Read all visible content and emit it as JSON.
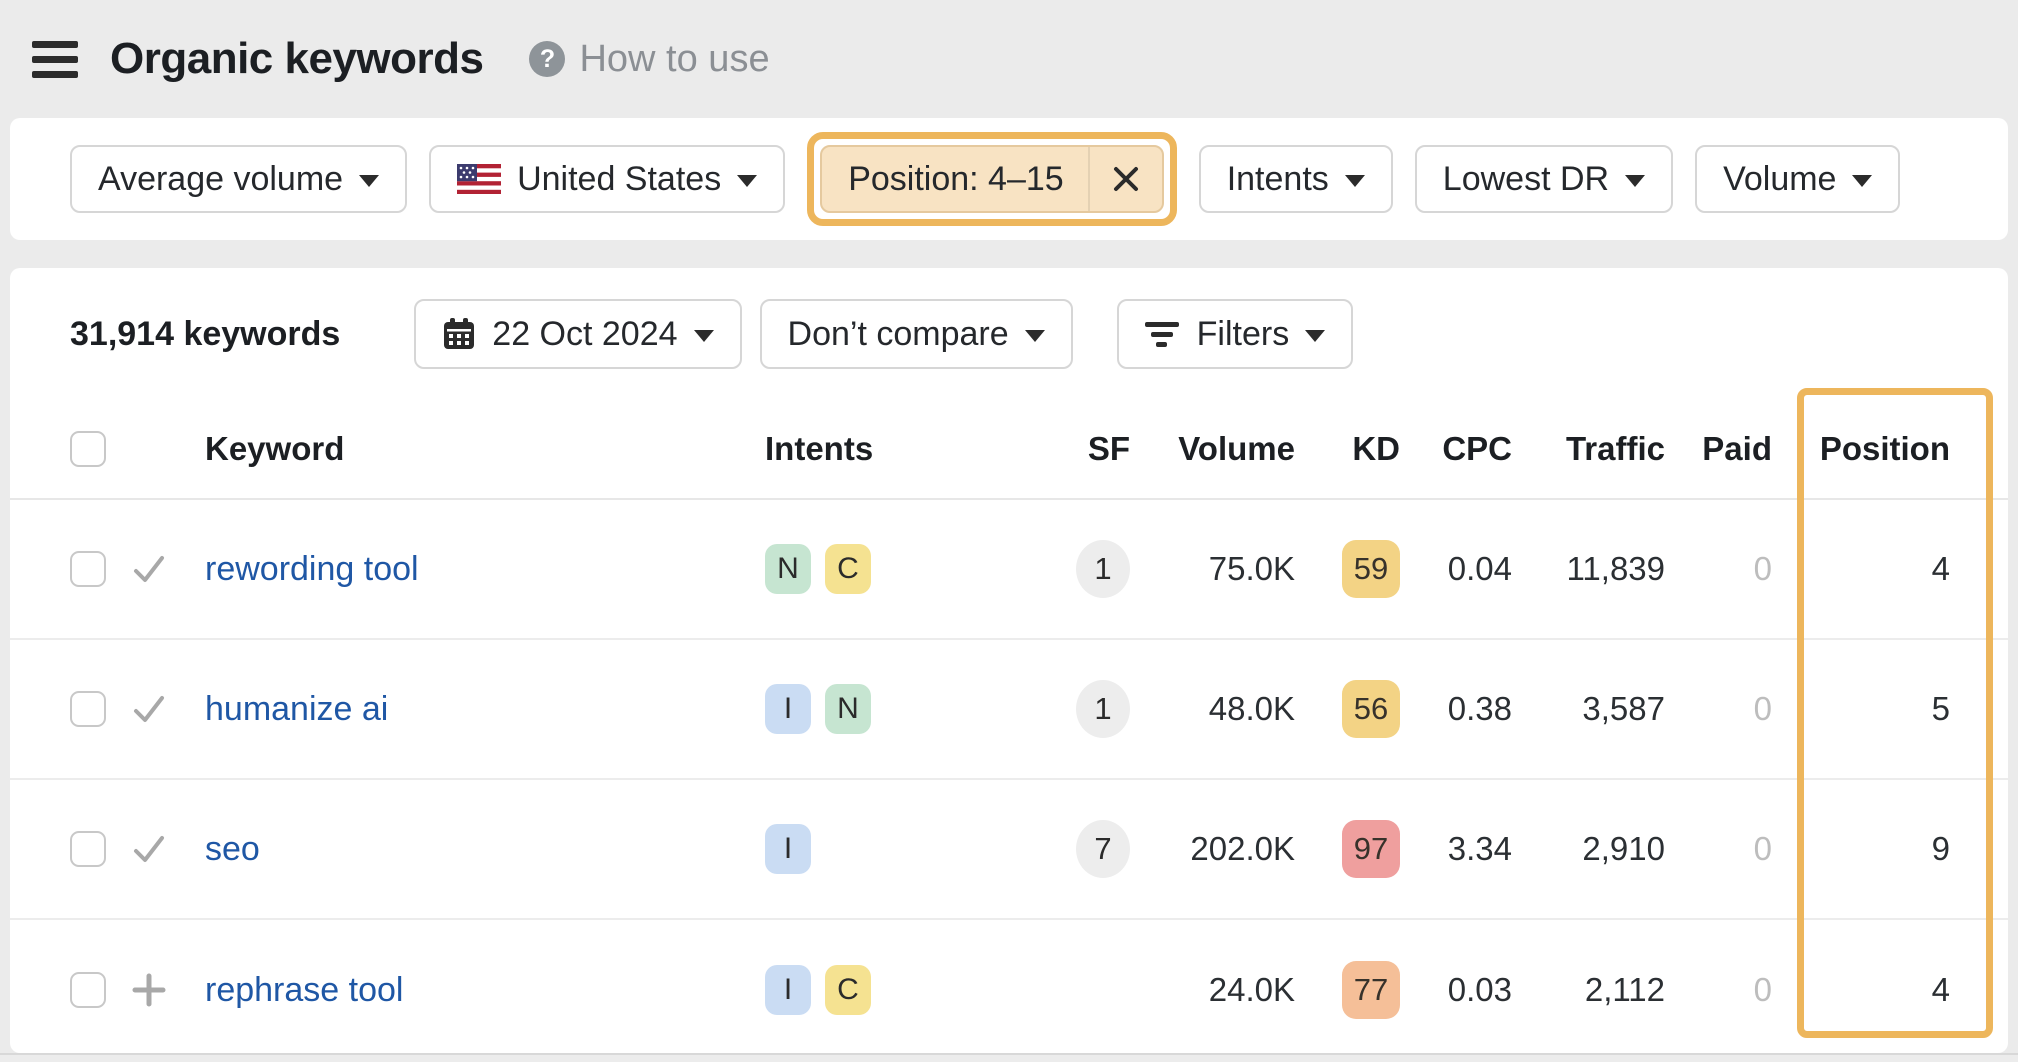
{
  "header": {
    "title": "Organic keywords",
    "help_label": "How to use"
  },
  "filters_bar": {
    "average_volume_label": "Average volume",
    "country_label": "United States",
    "position_filter_label": "Position: 4–15",
    "intents_label": "Intents",
    "lowest_dr_label": "Lowest DR",
    "volume_label": "Volume"
  },
  "toolbar": {
    "keyword_count": "31,914 keywords",
    "date_label": "22 Oct 2024",
    "compare_label": "Don’t compare",
    "filters_label": "Filters"
  },
  "table": {
    "header": {
      "keyword": "Keyword",
      "intents": "Intents",
      "sf": "SF",
      "volume": "Volume",
      "kd": "KD",
      "cpc": "CPC",
      "traffic": "Traffic",
      "paid": "Paid",
      "position": "Position"
    },
    "rows": [
      {
        "keyword": "rewording tool",
        "row_icon": "check",
        "intents": [
          {
            "label": "N",
            "bg": "#c6e5d1"
          },
          {
            "label": "C",
            "bg": "#f5e291"
          }
        ],
        "sf": "1",
        "volume": "75.0K",
        "kd": "59",
        "kd_bg": "#f3d385",
        "cpc": "0.04",
        "traffic": "11,839",
        "paid": "0",
        "position": "4"
      },
      {
        "keyword": "humanize ai",
        "row_icon": "check",
        "intents": [
          {
            "label": "I",
            "bg": "#cadcf3"
          },
          {
            "label": "N",
            "bg": "#c6e5d1"
          }
        ],
        "sf": "1",
        "volume": "48.0K",
        "kd": "56",
        "kd_bg": "#f3d385",
        "cpc": "0.38",
        "traffic": "3,587",
        "paid": "0",
        "position": "5"
      },
      {
        "keyword": "seo",
        "row_icon": "check",
        "intents": [
          {
            "label": "I",
            "bg": "#cadcf3"
          }
        ],
        "sf": "7",
        "volume": "202.0K",
        "kd": "97",
        "kd_bg": "#ef9f9e",
        "cpc": "3.34",
        "traffic": "2,910",
        "paid": "0",
        "position": "9"
      },
      {
        "keyword": "rephrase tool",
        "row_icon": "plus",
        "intents": [
          {
            "label": "I",
            "bg": "#cadcf3"
          },
          {
            "label": "C",
            "bg": "#f5e291"
          }
        ],
        "sf": "",
        "volume": "24.0K",
        "kd": "77",
        "kd_bg": "#f5bf98",
        "cpc": "0.03",
        "traffic": "2,112",
        "paid": "0",
        "position": "4"
      }
    ]
  },
  "colors": {
    "page_bg": "#ebebeb",
    "accent_orange": "#edb65c",
    "position_chip_bg": "#f8e3c3",
    "position_chip_border": "#e5c99e",
    "link_blue": "#1f57a5",
    "intent_green": "#c6e5d1",
    "intent_yellow": "#f5e291",
    "intent_blue": "#cadcf3",
    "kd_yellow": "#f3d385",
    "kd_orange": "#f5bf98",
    "kd_red": "#ef9f9e",
    "sf_circle_bg": "#ededed",
    "paid_muted": "#bdbdbd"
  }
}
